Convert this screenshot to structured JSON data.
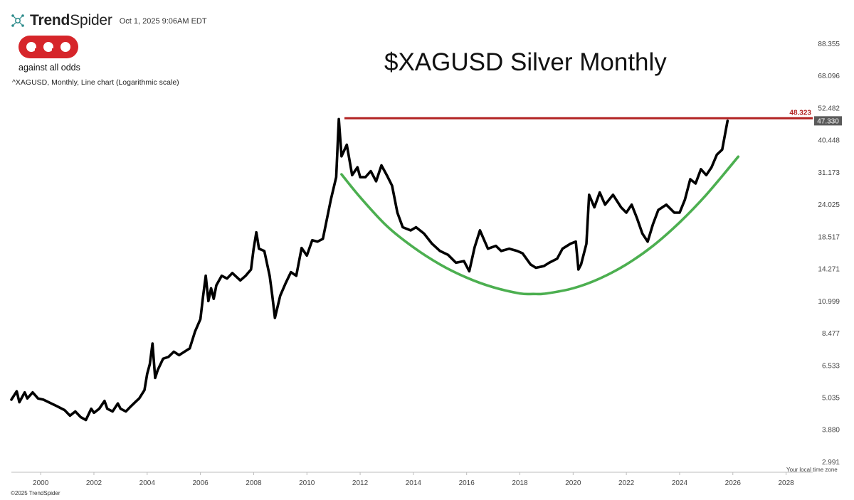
{
  "header": {
    "brand": "TrendSpider",
    "brand_prefix": "Trend",
    "brand_suffix": "Spider",
    "timestamp": "Oct 1, 2025 9:06AM EDT"
  },
  "logo": {
    "letters": "aao",
    "tagline": "against all odds",
    "color": "#d6252a"
  },
  "subtitle": "^XAGUSD, Monthly, Line chart (Logarithmic scale)",
  "footer": {
    "copyright": "©2025 TrendSpider",
    "timezone_note": "Your local time zone"
  },
  "chart_data": {
    "type": "line",
    "title": "$XAGUSD Silver Monthly",
    "xlabel": "",
    "ylabel": "",
    "y_scale": "log",
    "y_ticks": [
      "88.355",
      "68.096",
      "52.482",
      "40.448",
      "31.173",
      "24.025",
      "18.517",
      "14.271",
      "10.999",
      "8.477",
      "6.533",
      "5.035",
      "3.880",
      "2.991"
    ],
    "x_ticks": [
      "2000",
      "2002",
      "2004",
      "2006",
      "2008",
      "2010",
      "2012",
      "2014",
      "2016",
      "2018",
      "2020",
      "2022",
      "2024",
      "2026",
      "2028"
    ],
    "xlim": [
      1998.9,
      2029.0
    ],
    "ylim": [
      2.75,
      100
    ],
    "series": [
      {
        "color": "#000000",
        "x": [
          1998.9,
          1999.1,
          1999.2,
          1999.4,
          1999.5,
          1999.7,
          1999.9,
          2000.1,
          2000.3,
          2000.6,
          2000.9,
          2001.1,
          2001.3,
          2001.5,
          2001.7,
          2001.9,
          2002.0,
          2002.2,
          2002.4,
          2002.5,
          2002.7,
          2002.9,
          2003.0,
          2003.2,
          2003.4,
          2003.6,
          2003.7,
          2003.9,
          2004.0,
          2004.1,
          2004.2,
          2004.3,
          2004.4,
          2004.6,
          2004.8,
          2005.0,
          2005.2,
          2005.4,
          2005.6,
          2005.8,
          2006.0,
          2006.1,
          2006.2,
          2006.3,
          2006.4,
          2006.5,
          2006.6,
          2006.8,
          2007.0,
          2007.2,
          2007.5,
          2007.7,
          2007.9,
          2008.0,
          2008.1,
          2008.2,
          2008.4,
          2008.6,
          2008.7,
          2008.8,
          2009.0,
          2009.2,
          2009.4,
          2009.6,
          2009.8,
          2010.0,
          2010.2,
          2010.4,
          2010.6,
          2010.9,
          2011.1,
          2011.2,
          2011.3,
          2011.5,
          2011.7,
          2011.9,
          2012.0,
          2012.2,
          2012.4,
          2012.6,
          2012.8,
          2013.0,
          2013.2,
          2013.4,
          2013.6,
          2013.9,
          2014.1,
          2014.4,
          2014.7,
          2015.0,
          2015.3,
          2015.6,
          2015.9,
          2016.1,
          2016.3,
          2016.5,
          2016.8,
          2017.1,
          2017.3,
          2017.6,
          2017.9,
          2018.1,
          2018.4,
          2018.6,
          2018.9,
          2019.1,
          2019.4,
          2019.6,
          2019.9,
          2020.1,
          2020.2,
          2020.3,
          2020.5,
          2020.6,
          2020.8,
          2021.0,
          2021.2,
          2021.5,
          2021.8,
          2022.0,
          2022.2,
          2022.4,
          2022.6,
          2022.8,
          2023.0,
          2023.2,
          2023.5,
          2023.8,
          2024.0,
          2024.2,
          2024.4,
          2024.6,
          2024.8,
          2025.0,
          2025.2,
          2025.4,
          2025.6,
          2025.8
        ],
        "values": [
          4.95,
          5.3,
          4.85,
          5.25,
          5.0,
          5.25,
          5.0,
          4.95,
          4.85,
          4.7,
          4.55,
          4.35,
          4.5,
          4.3,
          4.2,
          4.6,
          4.45,
          4.6,
          4.9,
          4.6,
          4.5,
          4.8,
          4.6,
          4.5,
          4.7,
          4.9,
          5.0,
          5.35,
          6.1,
          6.6,
          7.8,
          5.9,
          6.3,
          6.9,
          7.0,
          7.3,
          7.1,
          7.3,
          7.5,
          8.6,
          9.5,
          11.4,
          13.5,
          11.0,
          12.2,
          11.2,
          12.5,
          13.5,
          13.2,
          13.8,
          13.0,
          13.5,
          14.2,
          16.8,
          19.2,
          16.8,
          16.5,
          13.5,
          11.5,
          9.6,
          11.5,
          12.7,
          13.9,
          13.5,
          16.9,
          15.9,
          18.0,
          17.8,
          18.2,
          25.0,
          30.0,
          48.0,
          35.5,
          39.0,
          30.5,
          32.5,
          30.0,
          30.0,
          31.5,
          29.0,
          33.0,
          30.5,
          28.0,
          22.5,
          20.0,
          19.5,
          20.0,
          19.0,
          17.5,
          16.5,
          16.0,
          15.0,
          15.2,
          14.0,
          17.0,
          19.5,
          16.8,
          17.2,
          16.5,
          16.8,
          16.5,
          16.2,
          14.8,
          14.4,
          14.6,
          15.0,
          15.5,
          16.8,
          17.5,
          17.8,
          14.2,
          14.8,
          17.5,
          26.0,
          23.5,
          26.5,
          24.0,
          26.0,
          23.5,
          22.5,
          24.0,
          21.5,
          19.0,
          17.8,
          20.5,
          23.0,
          24.0,
          22.5,
          22.5,
          25.0,
          29.5,
          28.5,
          32.0,
          30.5,
          32.5,
          36.0,
          37.5,
          47.33
        ]
      },
      {
        "name": "",
        "color": "#4caf50",
        "x": [
          2011.3,
          2012.0,
          2013.0,
          2014.0,
          2015.0,
          2016.0,
          2017.0,
          2018.0,
          2018.5,
          2019.0,
          2020.0,
          2021.0,
          2022.0,
          2023.0,
          2024.0,
          2025.0,
          2026.2
        ],
        "values": [
          30.7,
          25.5,
          20.2,
          17.0,
          14.8,
          13.3,
          12.3,
          11.7,
          11.65,
          11.7,
          12.2,
          13.2,
          14.8,
          17.2,
          20.8,
          26.0,
          35.4
        ]
      }
    ],
    "hline": {
      "value": 48.323,
      "label": "48.323",
      "color": "#b22222"
    },
    "last_value_label": "47.330",
    "last_value_color": "#5a5a5a"
  }
}
